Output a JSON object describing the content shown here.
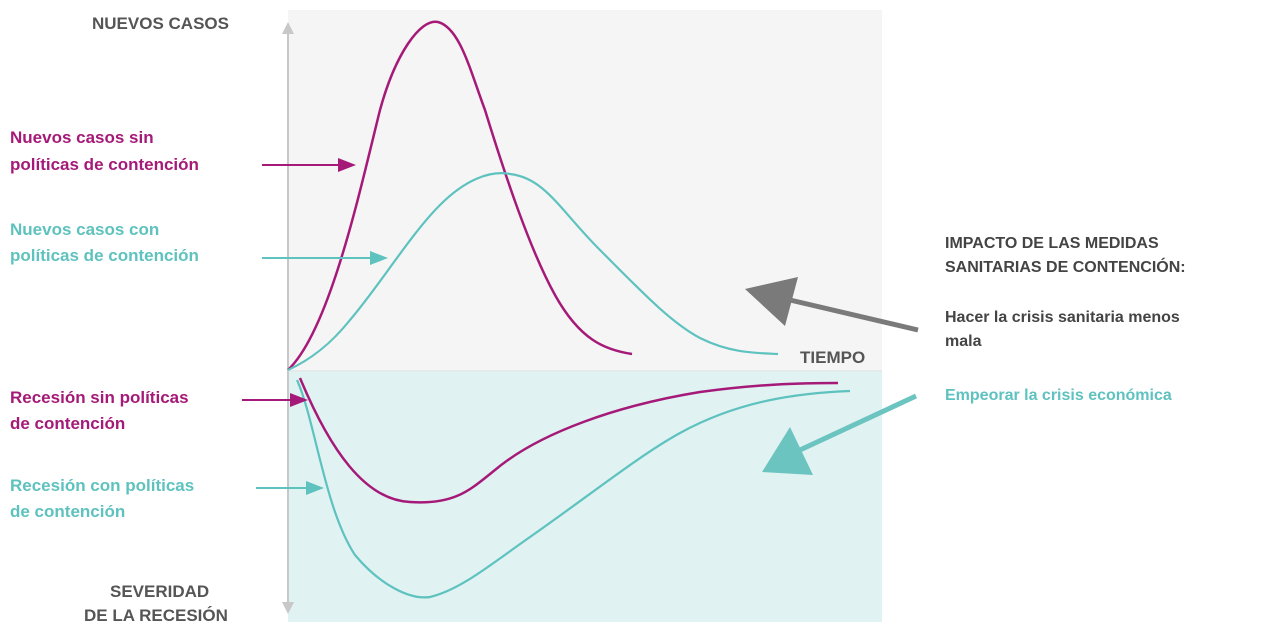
{
  "colors": {
    "magenta": "#a51a78",
    "teal": "#5ec2bf",
    "grey": "#555555",
    "upper_panel": "#f5f5f5",
    "lower_panel": "#e0f2f2"
  },
  "axes": {
    "y_up_label": "NUEVOS CASOS",
    "y_down_label_line1": "SEVERIDAD",
    "y_down_label_line2": "DE LA RECESIÓN",
    "x_label": "TIEMPO"
  },
  "left_labels": {
    "cases_without_line1": "Nuevos casos sin",
    "cases_without_line2": "políticas de contención",
    "cases_with_line1": "Nuevos casos con",
    "cases_with_line2": "políticas de contención",
    "recession_without_line1": "Recesión sin políticas",
    "recession_without_line2": "de contención",
    "recession_with_line1": "Recesión con políticas",
    "recession_with_line2": "de contención"
  },
  "right_panel": {
    "title_line1": "IMPACTO DE LAS MEDIDAS",
    "title_line2": "SANITARIAS DE CONTENCIÓN:",
    "health_line1": "Hacer la crisis sanitaria menos",
    "health_line2": "mala",
    "economic": "Empeorar la crisis económica"
  }
}
